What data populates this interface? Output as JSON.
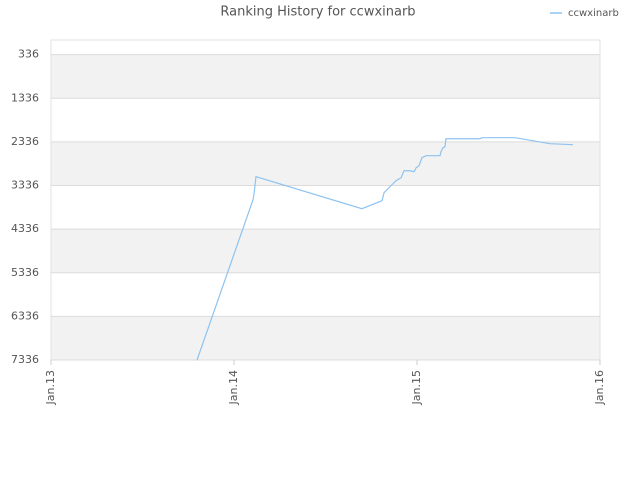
{
  "chart_data": {
    "type": "line",
    "title": "Ranking History for ccwxinarb",
    "x": [
      2013.798,
      2014.104,
      2014.109,
      2014.12,
      2014.699,
      2014.809,
      2014.82,
      2014.852,
      2014.885,
      2014.913,
      2014.929,
      2014.962,
      2014.984,
      2014.995,
      2015.011,
      2015.027,
      2015.049,
      2015.126,
      2015.131,
      2015.142,
      2015.153,
      2015.158,
      2015.344,
      2015.355,
      2015.536,
      2015.727,
      2015.852
    ],
    "series": [
      {
        "name": "ccwxinarb",
        "color": "#8ec3f0",
        "values": [
          7336,
          3662,
          3547,
          3134,
          3868,
          3685,
          3501,
          3364,
          3226,
          3157,
          2997,
          2997,
          3019,
          2928,
          2882,
          2698,
          2652,
          2652,
          2561,
          2469,
          2446,
          2263,
          2263,
          2240,
          2240,
          2377,
          2400
        ]
      }
    ],
    "xlim": [
      2013,
      2016
    ],
    "xticks": [
      {
        "value": 2013,
        "label": "Jan.13"
      },
      {
        "value": 2014,
        "label": "Jan.14"
      },
      {
        "value": 2015,
        "label": "Jan.15"
      },
      {
        "value": 2016,
        "label": "Jan.16"
      }
    ],
    "ylim": [
      7336,
      0
    ],
    "yticks": [
      7336,
      6336,
      5336,
      4336,
      3336,
      2336,
      1336,
      336
    ],
    "grid": true,
    "legend": "top-right"
  }
}
